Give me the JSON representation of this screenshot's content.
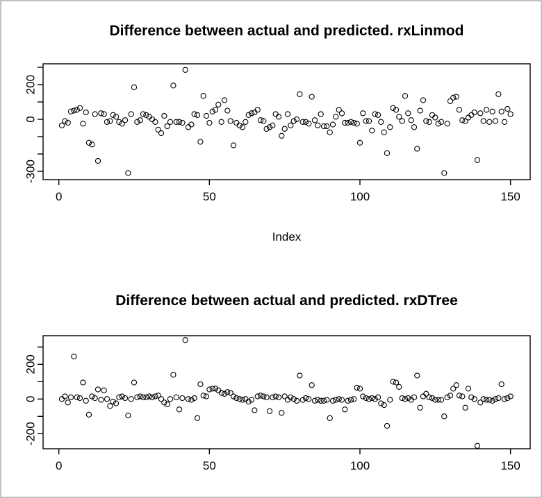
{
  "frame": {
    "background": "#ffffff",
    "border_color": "#c0c0c0",
    "axis_color": "#000000",
    "marker_color": "#000000"
  },
  "chart_data": [
    {
      "type": "scatter",
      "title": "Difference between actual and predicted. rxLinmod",
      "xlabel": "Index",
      "ylabel": "",
      "marker": "open-circle",
      "legend": "none",
      "grid": false,
      "x": {
        "type": "index",
        "from": 1,
        "to": 150
      },
      "xlim": [
        -5,
        157
      ],
      "ylim": [
        -348,
        320
      ],
      "x_ticks": {
        "values": [
          0,
          50,
          100,
          150
        ],
        "labels": [
          "0",
          "50",
          "100",
          "150"
        ]
      },
      "y_ticks": {
        "values": [
          300,
          200,
          100,
          0,
          -100,
          -200,
          -300
        ],
        "labels": [
          "",
          "200",
          "",
          "0",
          "",
          "",
          "-300"
        ]
      },
      "values": [
        -35,
        -10,
        -20,
        45,
        50,
        55,
        65,
        -25,
        40,
        -135,
        -145,
        30,
        -240,
        35,
        30,
        -15,
        -10,
        25,
        15,
        -15,
        -25,
        -5,
        -310,
        30,
        185,
        -15,
        -5,
        30,
        25,
        15,
        0,
        -15,
        -60,
        -80,
        20,
        -40,
        -15,
        195,
        -15,
        -15,
        -20,
        285,
        -45,
        -30,
        30,
        25,
        -130,
        135,
        20,
        -20,
        45,
        55,
        85,
        -15,
        110,
        50,
        -10,
        -150,
        -20,
        -35,
        -45,
        -15,
        25,
        35,
        40,
        55,
        -5,
        -10,
        -55,
        -45,
        -35,
        30,
        15,
        -95,
        -55,
        30,
        -35,
        -10,
        0,
        145,
        -15,
        -15,
        -25,
        130,
        -5,
        -35,
        30,
        -40,
        -40,
        -75,
        -30,
        15,
        55,
        35,
        -20,
        -20,
        -15,
        -20,
        -25,
        -135,
        35,
        -10,
        -10,
        -65,
        30,
        25,
        -15,
        -75,
        -195,
        -45,
        65,
        55,
        15,
        -10,
        135,
        35,
        -5,
        -45,
        -170,
        50,
        110,
        -10,
        -15,
        25,
        10,
        -25,
        -15,
        -310,
        -25,
        105,
        125,
        130,
        55,
        -5,
        -10,
        10,
        25,
        40,
        -235,
        35,
        -10,
        55,
        -15,
        45,
        -10,
        145,
        45,
        -15,
        60,
        30
      ]
    },
    {
      "type": "scatter",
      "title": "Difference between actual and predicted. rxDTree",
      "xlabel": "",
      "ylabel": "",
      "marker": "open-circle",
      "legend": "none",
      "grid": false,
      "x": {
        "type": "index",
        "from": 1,
        "to": 150
      },
      "xlim": [
        -5,
        157
      ],
      "ylim": [
        -290,
        365
      ],
      "x_ticks": {
        "values": [
          0,
          50,
          100,
          150
        ],
        "labels": [
          "0",
          "50",
          "100",
          "150"
        ]
      },
      "y_ticks": {
        "values": [
          300,
          200,
          100,
          0,
          -100,
          -200
        ],
        "labels": [
          "",
          "200",
          "",
          "0",
          "",
          "-200"
        ]
      },
      "values": [
        0,
        15,
        -20,
        10,
        245,
        10,
        5,
        95,
        -10,
        -90,
        15,
        5,
        55,
        -5,
        50,
        0,
        -40,
        -15,
        -25,
        10,
        15,
        5,
        -95,
        0,
        95,
        10,
        15,
        10,
        10,
        15,
        10,
        15,
        20,
        0,
        -20,
        -30,
        0,
        140,
        10,
        -60,
        5,
        340,
        0,
        -5,
        5,
        -110,
        85,
        20,
        15,
        55,
        60,
        60,
        50,
        35,
        30,
        40,
        35,
        15,
        5,
        0,
        -5,
        0,
        -15,
        -5,
        -65,
        15,
        20,
        15,
        10,
        -70,
        10,
        15,
        10,
        -80,
        15,
        -5,
        10,
        0,
        -10,
        135,
        -5,
        5,
        0,
        80,
        -10,
        -5,
        -10,
        -10,
        -5,
        -110,
        -10,
        -5,
        0,
        -5,
        -60,
        -10,
        -5,
        0,
        65,
        60,
        15,
        5,
        0,
        5,
        0,
        10,
        -25,
        -35,
        -155,
        -5,
        100,
        95,
        70,
        5,
        0,
        5,
        -5,
        10,
        135,
        -50,
        15,
        30,
        10,
        5,
        -5,
        -5,
        -5,
        -100,
        10,
        20,
        60,
        80,
        20,
        15,
        -50,
        60,
        10,
        0,
        -270,
        -20,
        0,
        -5,
        -5,
        -10,
        0,
        5,
        85,
        0,
        5,
        15
      ]
    }
  ]
}
